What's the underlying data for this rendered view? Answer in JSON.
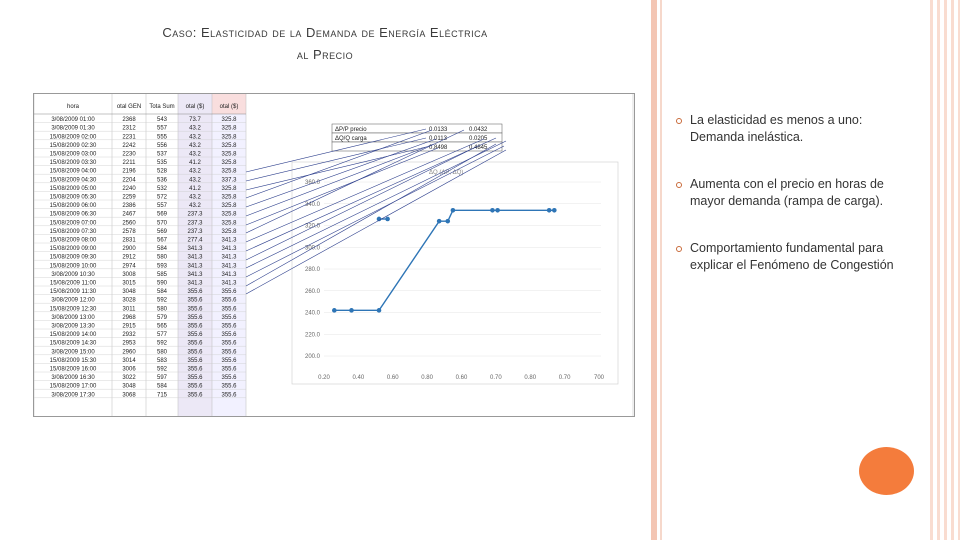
{
  "slide": {
    "title_line1": "Caso: Elasticidad de la Demanda de Energía Eléctrica",
    "title_line2": "al Precio"
  },
  "bullets": [
    "La elasticidad es menos a uno: Demanda inelástica.",
    "Aumenta con el precio en horas de mayor demanda (rampa de carga).",
    "Comportamiento fundamental para explicar el Fenómeno de Congestión"
  ],
  "colors": {
    "accent_orange": "#f47c3c",
    "stripe_pink": "#f3c6b4",
    "line_blue": "#2e75b6",
    "arrow_navy": "#2c3e8c"
  },
  "spreadsheet": {
    "headers": [
      "hora",
      "otal GEN",
      "Tota Sum",
      "otal ($)",
      "otal ($)"
    ],
    "rows": [
      [
        "3/08/2009 01:00",
        "2368",
        "543",
        "73.7",
        "325.8"
      ],
      [
        "3/08/2009 01:30",
        "2312",
        "557",
        "43.2",
        "325.8"
      ],
      [
        "15/08/2009 02:00",
        "2231",
        "555",
        "43.2",
        "325.8"
      ],
      [
        "15/08/2009 02:30",
        "2242",
        "556",
        "43.2",
        "325.8"
      ],
      [
        "15/08/2009 03:00",
        "2230",
        "537",
        "43.2",
        "325.8"
      ],
      [
        "15/08/2009 03:30",
        "2211",
        "535",
        "41.2",
        "325.8"
      ],
      [
        "15/08/2009 04:00",
        "2196",
        "528",
        "43.2",
        "325.8"
      ],
      [
        "15/08/2009 04:30",
        "2204",
        "536",
        "43.2",
        "337.3"
      ],
      [
        "15/08/2009 05:00",
        "2240",
        "532",
        "41.2",
        "325.8"
      ],
      [
        "15/08/2009 05:30",
        "2259",
        "572",
        "43.2",
        "325.8"
      ],
      [
        "15/08/2009 06:00",
        "2386",
        "557",
        "43.2",
        "325.8"
      ],
      [
        "15/08/2009 06:30",
        "2467",
        "569",
        "237.3",
        "325.8"
      ],
      [
        "15/08/2009 07:00",
        "2560",
        "570",
        "237.3",
        "325.8"
      ],
      [
        "15/08/2009 07:30",
        "2578",
        "569",
        "237.3",
        "325.8"
      ],
      [
        "15/08/2009 08:00",
        "2831",
        "567",
        "277.4",
        "341.3"
      ],
      [
        "15/08/2009 09:00",
        "2900",
        "584",
        "341.3",
        "341.3"
      ],
      [
        "15/08/2009 09:30",
        "2912",
        "580",
        "341.3",
        "341.3"
      ],
      [
        "15/08/2009 10:00",
        "2974",
        "593",
        "341.3",
        "341.3"
      ],
      [
        "3/08/2009 10:30",
        "3008",
        "585",
        "341.3",
        "341.3"
      ],
      [
        "15/08/2009 11:00",
        "3015",
        "590",
        "341.3",
        "341.3"
      ],
      [
        "15/08/2009 11:30",
        "3048",
        "584",
        "355.6",
        "355.6"
      ],
      [
        "3/08/2009 12:00",
        "3028",
        "592",
        "355.6",
        "355.6"
      ],
      [
        "15/08/2009 12:30",
        "3011",
        "580",
        "355.6",
        "355.6"
      ],
      [
        "3/08/2009 13:00",
        "2968",
        "579",
        "355.6",
        "355.6"
      ],
      [
        "3/08/2009 13:30",
        "2915",
        "565",
        "355.6",
        "355.6"
      ],
      [
        "15/08/2009 14:00",
        "2932",
        "577",
        "355.6",
        "355.6"
      ],
      [
        "15/08/2009 14:30",
        "2953",
        "592",
        "355.6",
        "355.6"
      ],
      [
        "3/08/2009 15:00",
        "2960",
        "580",
        "355.6",
        "355.6"
      ],
      [
        "15/08/2009 15:30",
        "3014",
        "583",
        "355.6",
        "355.6"
      ],
      [
        "15/08/2009 16:00",
        "3006",
        "592",
        "355.6",
        "355.6"
      ],
      [
        "3/08/2009 16:30",
        "3022",
        "597",
        "355.6",
        "355.6"
      ],
      [
        "15/08/2009 17:00",
        "3048",
        "584",
        "355.6",
        "355.6"
      ],
      [
        "3/08/2009 17:30",
        "3068",
        "715",
        "355.6",
        "355.6"
      ]
    ]
  },
  "summary_table": [
    [
      "ΔP/P precio",
      "0.0133",
      "0.0432"
    ],
    [
      "ΔQ/Q carga",
      "0.0113",
      "0.0205"
    ],
    [
      "",
      "0.8498",
      "0.4845"
    ]
  ],
  "chart_data": {
    "type": "line",
    "title": "ΔQ (ΔP; ΔQ)",
    "x_ticks": [
      "0.20",
      "0.40",
      "0.60",
      "0.80",
      "0.60",
      "0.70",
      "0.80",
      "0.70",
      "700"
    ],
    "y_ticks": [
      "360.0",
      "340.0",
      "320.0",
      "300.0",
      "280.0",
      "260.0",
      "240.0",
      "220.0",
      "200.0"
    ],
    "ylim": [
      200,
      360
    ],
    "xlim": [
      0,
      8
    ],
    "series": [
      {
        "x": [
          0.3,
          0.8,
          1.6,
          3.35,
          3.6,
          3.75,
          4.9,
          5.05,
          6.55,
          6.7
        ],
        "y": [
          242,
          242,
          242,
          324,
          324,
          334,
          334,
          334,
          334,
          334
        ]
      },
      {
        "x": [
          1.6,
          1.85
        ],
        "y": [
          326,
          326
        ]
      }
    ]
  }
}
